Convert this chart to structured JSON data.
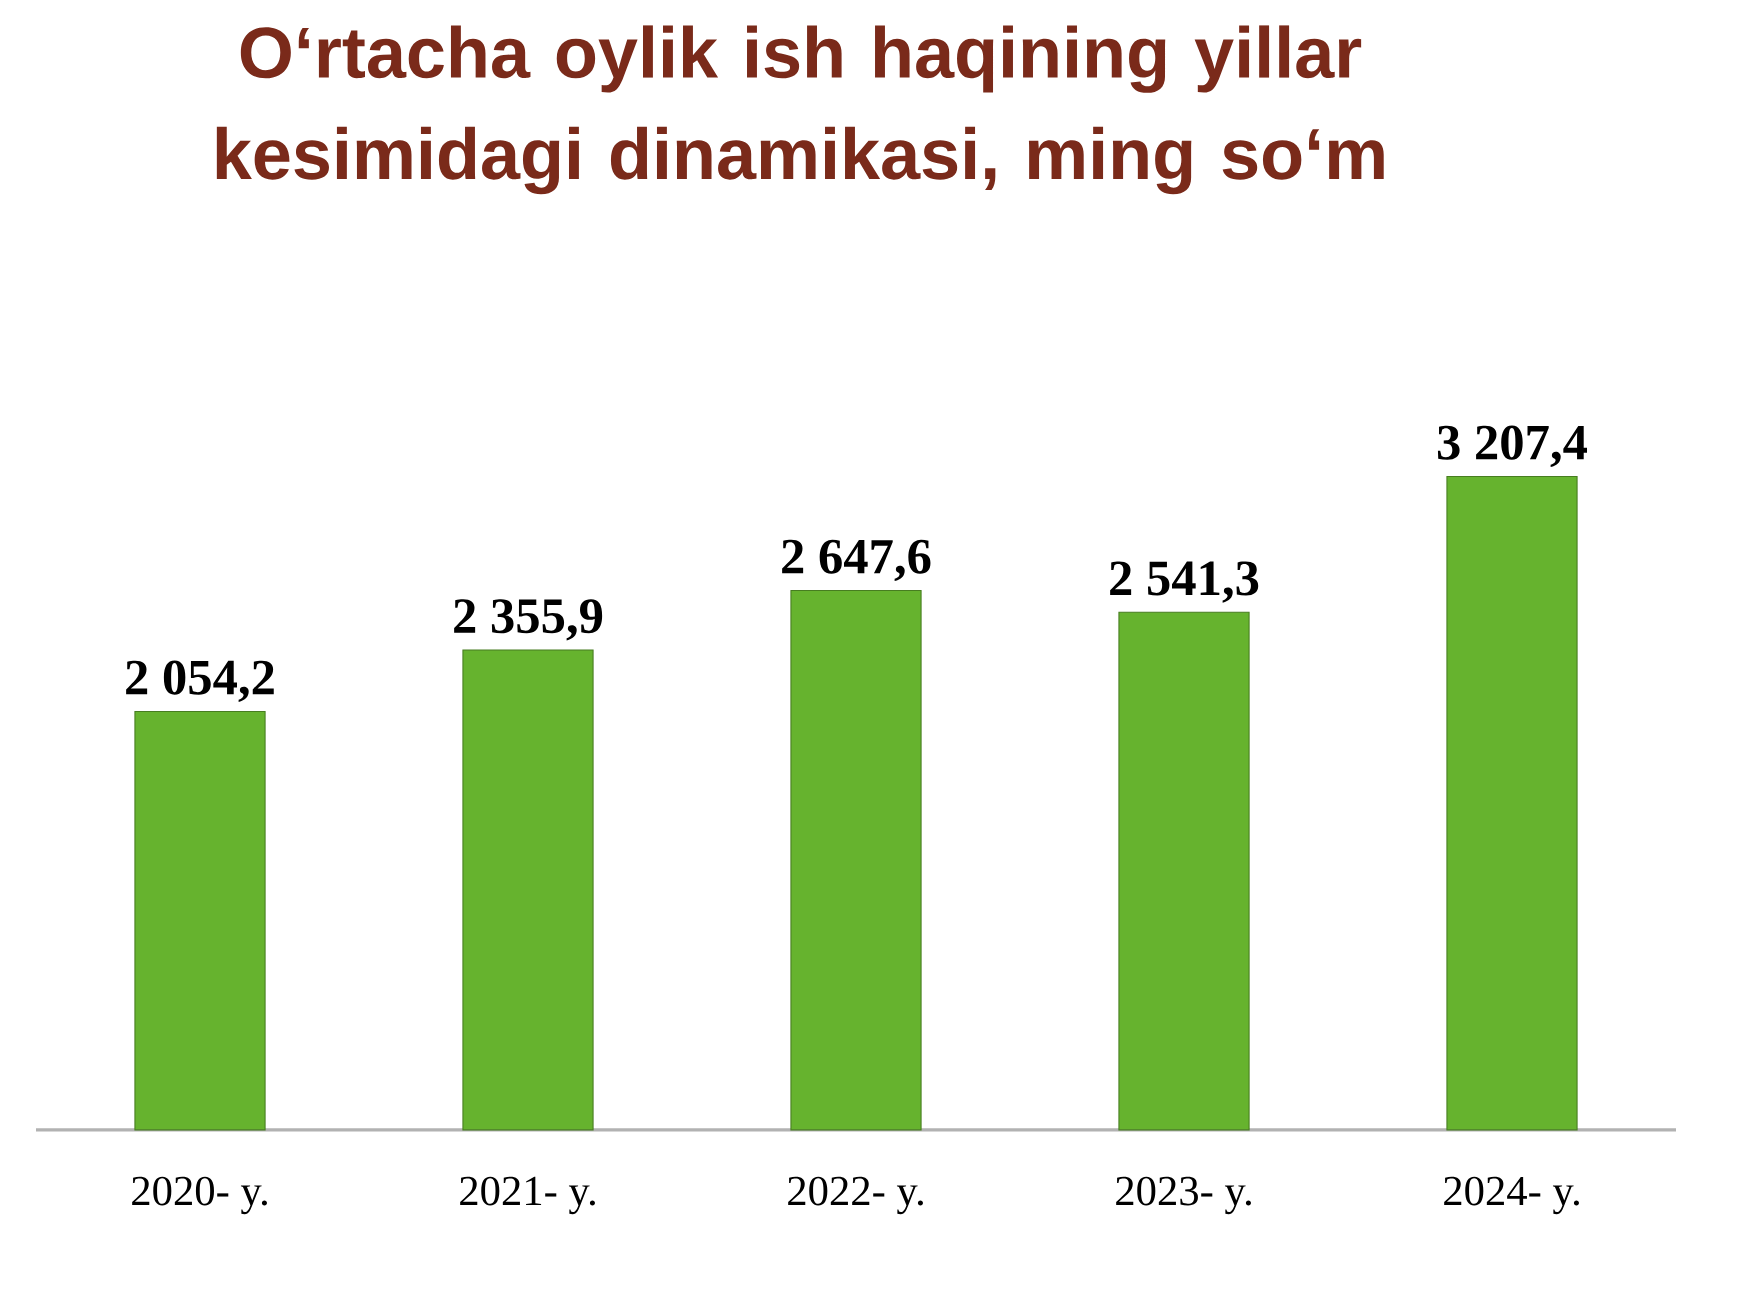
{
  "chart_data": {
    "type": "bar",
    "title": "O‘rtacha oylik ish haqining yillar kesimidagi dinamikasi, ming so‘m",
    "categories": [
      "2020- y.",
      "2021- y.",
      "2022- y.",
      "2023- y.",
      "2024- y."
    ],
    "values": [
      2054.2,
      2355.9,
      2647.6,
      2541.3,
      3207.4
    ],
    "value_labels": [
      "2 054,2",
      "2 355,9",
      "2 647,6",
      "2 541,3",
      "3 207,4"
    ],
    "color": "#66b32e"
  }
}
